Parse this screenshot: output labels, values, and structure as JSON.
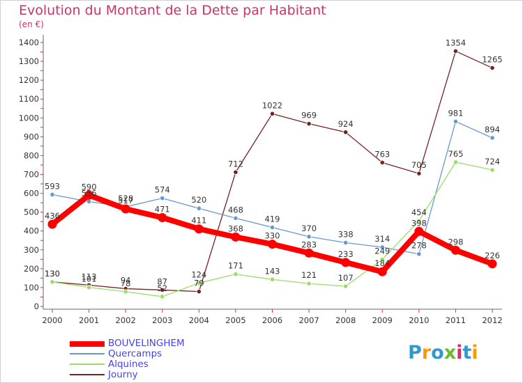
{
  "title": "Evolution du Montant de la Dette par Habitant",
  "subtitle": "(en €)",
  "logo": {
    "text": "Proxiti"
  },
  "legend": [
    {
      "label": "BOUVELINGHEM",
      "color": "#ff0000"
    },
    {
      "label": "Quercamps",
      "color": "#6699cc"
    },
    {
      "label": "Alquines",
      "color": "#99dd66"
    },
    {
      "label": "Journy",
      "color": "#772222"
    }
  ],
  "chart_data": {
    "type": "line",
    "title": "Evolution du Montant de la Dette par Habitant",
    "ylabel": "(en €)",
    "xlabel": "",
    "categories": [
      "2000",
      "2001",
      "2002",
      "2003",
      "2004",
      "2005",
      "2006",
      "2007",
      "2008",
      "2009",
      "2010",
      "2011",
      "2012"
    ],
    "ylim": [
      0,
      1400
    ],
    "yticks": [
      0,
      100,
      200,
      300,
      400,
      500,
      600,
      700,
      800,
      900,
      1000,
      1100,
      1200,
      1300,
      1400
    ],
    "grid": false,
    "legend_position": "bottom-left",
    "series": [
      {
        "name": "BOUVELINGHEM",
        "color": "#ff0000",
        "values": [
          436,
          590,
          517,
          471,
          411,
          368,
          330,
          283,
          233,
          184,
          398,
          298,
          226
        ]
      },
      {
        "name": "Quercamps",
        "color": "#6699cc",
        "values": [
          593,
          556,
          528,
          574,
          520,
          468,
          419,
          370,
          338,
          314,
          278,
          981,
          894
        ]
      },
      {
        "name": "Alquines",
        "color": "#99dd66",
        "values": [
          130,
          101,
          78,
          52,
          124,
          171,
          143,
          121,
          107,
          249,
          454,
          765,
          724
        ]
      },
      {
        "name": "Journy",
        "color": "#772222",
        "values": [
          130,
          113,
          94,
          87,
          79,
          712,
          1022,
          969,
          924,
          763,
          705,
          1354,
          1265
        ]
      }
    ]
  }
}
